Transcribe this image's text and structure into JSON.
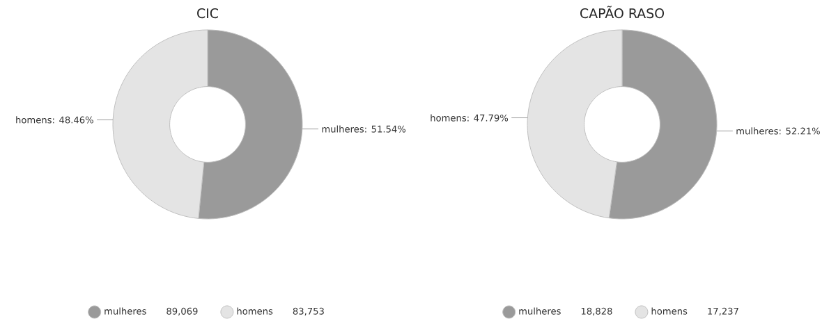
{
  "chart_data": [
    {
      "type": "donut",
      "title": "CIC",
      "categories": [
        "mulheres",
        "homens"
      ],
      "values": [
        51.54,
        48.46
      ],
      "value_labels": [
        "mulheres: 51.54%",
        "homens: 48.46%"
      ],
      "colors": [
        "#9a9a9a",
        "#e4e4e4"
      ],
      "legend": "bottom",
      "annotations": [
        "89,069",
        "83,753"
      ]
    },
    {
      "type": "donut",
      "title": "CAPÃO RASO",
      "categories": [
        "mulheres",
        "homens"
      ],
      "values": [
        52.21,
        47.79
      ],
      "value_labels": [
        "mulheres: 52.21%",
        "homens: 47.79%"
      ],
      "colors": [
        "#9a9a9a",
        "#e4e4e4"
      ],
      "legend": "bottom",
      "annotations": [
        "18,828",
        "17,237"
      ]
    }
  ]
}
